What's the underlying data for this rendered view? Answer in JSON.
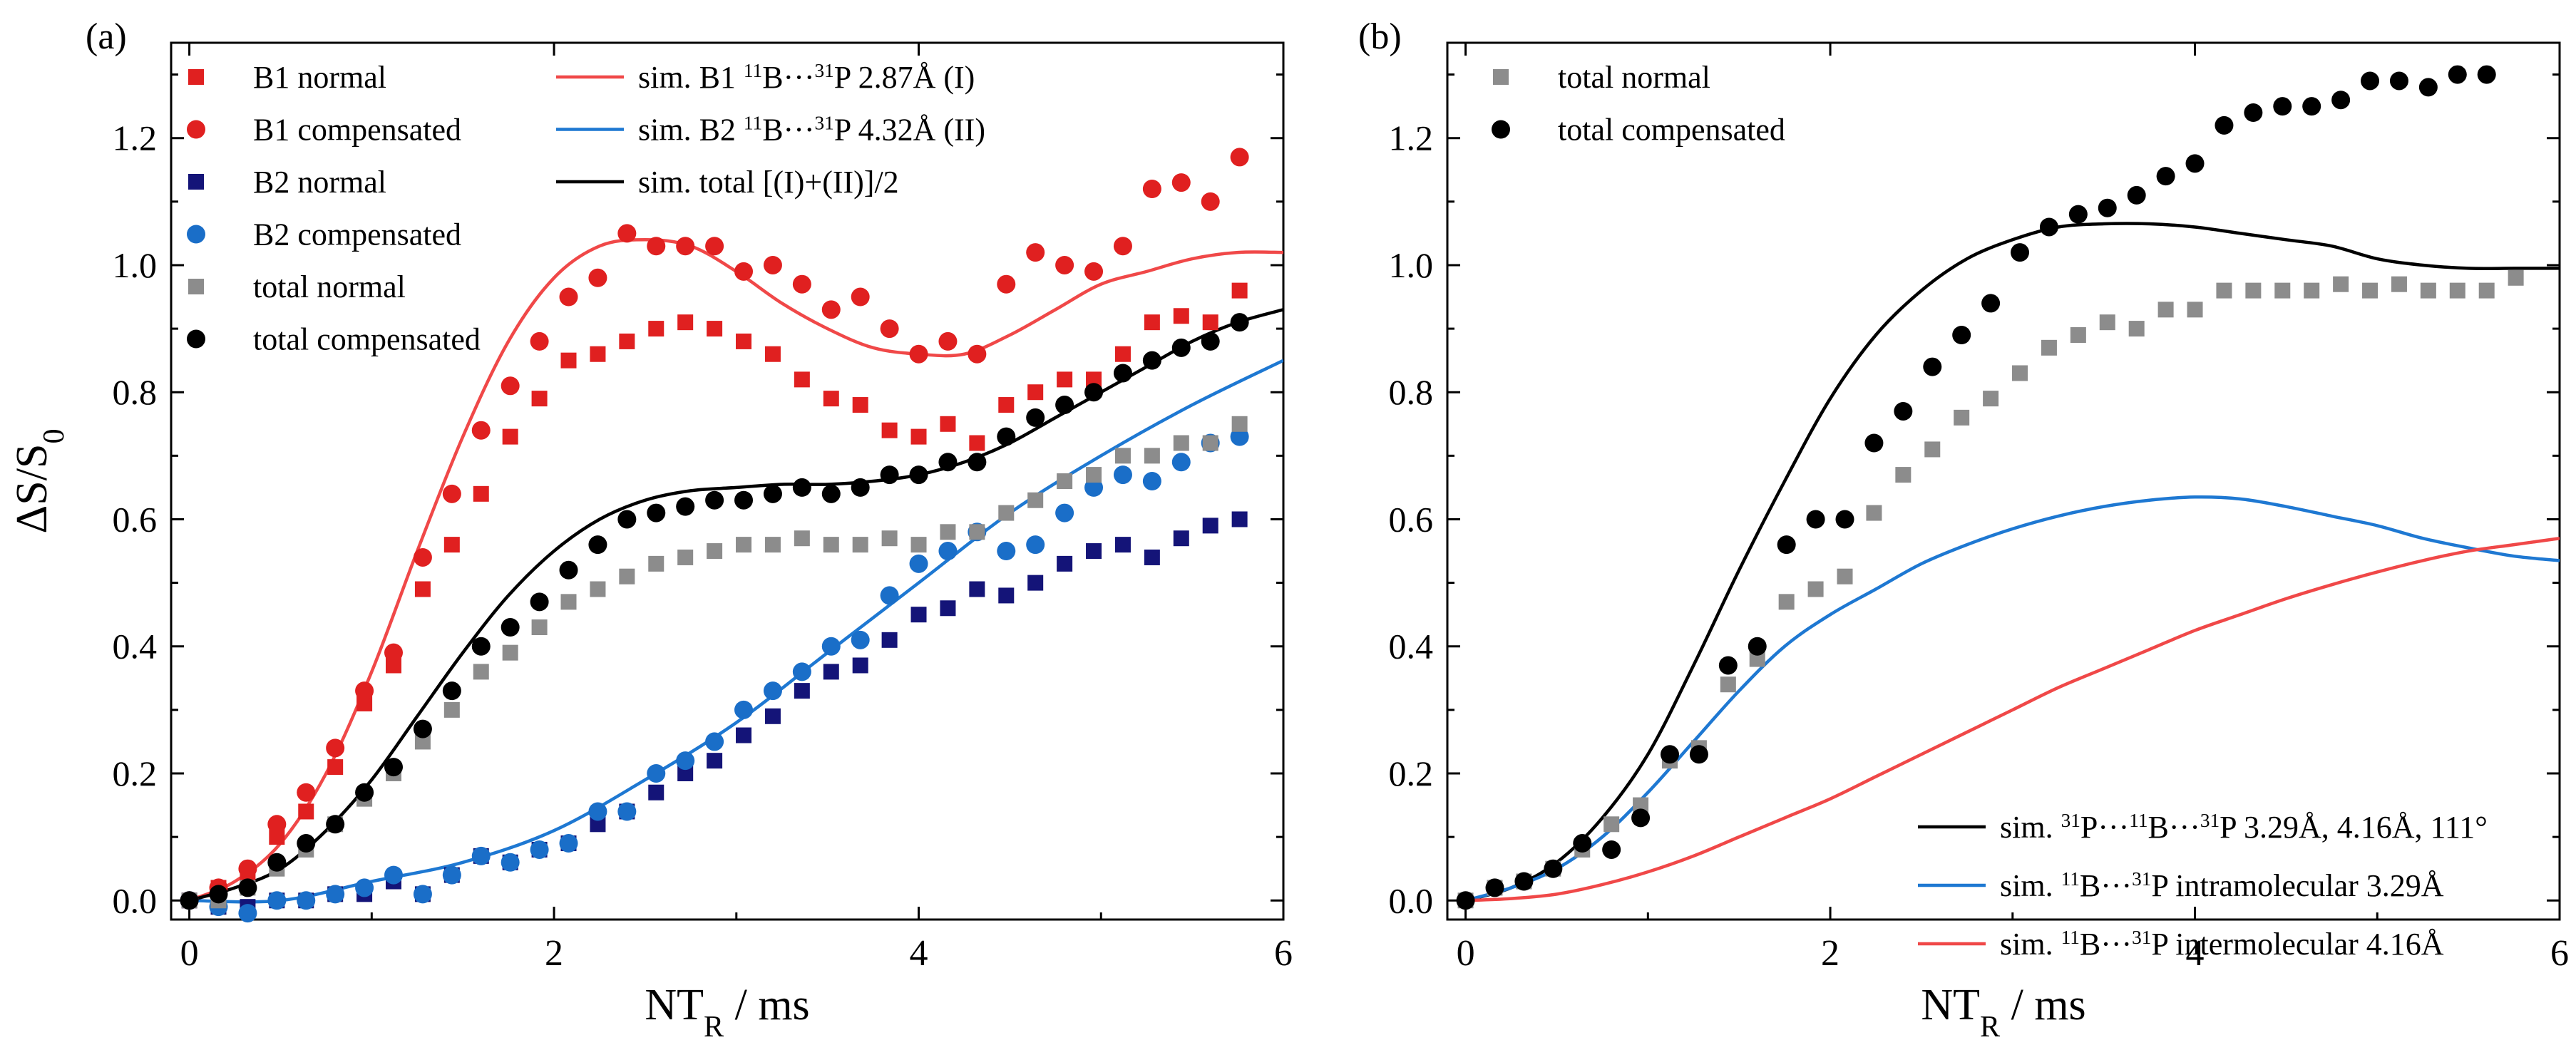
{
  "figure": {
    "panel_labels": [
      "(a)",
      "(b)"
    ]
  },
  "chart_data": [
    {
      "id": "a",
      "type": "scatter",
      "xlabel": "NT",
      "xlabel_sub": "R",
      "xlabel_unit": " / ms",
      "ylabel": "ΔS/S",
      "ylabel_sub": "0",
      "xlim": [
        -0.1,
        6
      ],
      "ylim": [
        -0.03,
        1.35
      ],
      "xticks": [
        0,
        2,
        4,
        6
      ],
      "yticks": [
        0.0,
        0.2,
        0.4,
        0.6,
        0.8,
        1.0,
        1.2
      ],
      "ytick_labels": [
        "0.0",
        "0.2",
        "0.4",
        "0.6",
        "0.8",
        "1.0",
        "1.2"
      ],
      "x": [
        0,
        0.16,
        0.32,
        0.48,
        0.64,
        0.8,
        0.96,
        1.12,
        1.28,
        1.44,
        1.6,
        1.76,
        1.92,
        2.08,
        2.24,
        2.4,
        2.56,
        2.72,
        2.88,
        3.04,
        3.2,
        3.36,
        3.52,
        3.68,
        3.84,
        4.0,
        4.16,
        4.32,
        4.48,
        4.64,
        4.8,
        4.96,
        5.12,
        5.28,
        5.44,
        5.6,
        5.76
      ],
      "series": [
        {
          "name": "B1 normal",
          "marker": "square",
          "color": "#e02020",
          "values": [
            0.0,
            0.02,
            0.03,
            0.1,
            0.14,
            0.21,
            0.31,
            0.37,
            0.49,
            0.56,
            0.64,
            0.73,
            0.79,
            0.85,
            0.86,
            0.88,
            0.9,
            0.91,
            0.9,
            0.88,
            0.86,
            0.82,
            0.79,
            0.78,
            0.74,
            0.73,
            0.75,
            0.72,
            0.78,
            0.8,
            0.82,
            0.82,
            0.86,
            0.91,
            0.92,
            0.91,
            0.96
          ]
        },
        {
          "name": "B1 compensated",
          "marker": "circle",
          "color": "#e02020",
          "values": [
            0.0,
            0.02,
            0.05,
            0.12,
            0.17,
            0.24,
            0.33,
            0.39,
            0.54,
            0.64,
            0.74,
            0.81,
            0.88,
            0.95,
            0.98,
            1.05,
            1.03,
            1.03,
            1.03,
            0.99,
            1.0,
            0.97,
            0.93,
            0.95,
            0.9,
            0.86,
            0.88,
            0.86,
            0.97,
            1.02,
            1.0,
            0.99,
            1.03,
            1.12,
            1.13,
            1.1,
            1.17
          ]
        },
        {
          "name": "B2 normal",
          "marker": "square",
          "color": "#141478",
          "values": [
            0.0,
            -0.01,
            -0.01,
            0.0,
            0.0,
            0.01,
            0.01,
            0.03,
            0.01,
            0.04,
            0.07,
            0.06,
            0.08,
            0.09,
            0.12,
            0.14,
            0.17,
            0.2,
            0.22,
            0.26,
            0.29,
            0.33,
            0.36,
            0.37,
            0.41,
            0.45,
            0.46,
            0.49,
            0.48,
            0.5,
            0.53,
            0.55,
            0.56,
            0.54,
            0.57,
            0.59,
            0.6
          ]
        },
        {
          "name": "B2 compensated",
          "marker": "circle",
          "color": "#1a6ec8",
          "values": [
            0.0,
            -0.01,
            -0.02,
            0.0,
            0.0,
            0.01,
            0.02,
            0.04,
            0.01,
            0.04,
            0.07,
            0.06,
            0.08,
            0.09,
            0.14,
            0.14,
            0.2,
            0.22,
            0.25,
            0.3,
            0.33,
            0.36,
            0.4,
            0.41,
            0.48,
            0.53,
            0.55,
            0.58,
            0.55,
            0.56,
            0.61,
            0.65,
            0.67,
            0.66,
            0.69,
            0.72,
            0.73
          ]
        },
        {
          "name": "total normal",
          "marker": "square",
          "color": "#8c8c8c",
          "values": [
            0.0,
            0.0,
            0.02,
            0.05,
            0.08,
            0.12,
            0.16,
            0.2,
            0.25,
            0.3,
            0.36,
            0.39,
            0.43,
            0.47,
            0.49,
            0.51,
            0.53,
            0.54,
            0.55,
            0.56,
            0.56,
            0.57,
            0.56,
            0.56,
            0.57,
            0.56,
            0.58,
            0.58,
            0.61,
            0.63,
            0.66,
            0.67,
            0.7,
            0.7,
            0.72,
            0.72,
            0.75
          ]
        },
        {
          "name": "total compensated",
          "marker": "circle",
          "color": "#000000",
          "values": [
            0.0,
            0.01,
            0.02,
            0.06,
            0.09,
            0.12,
            0.17,
            0.21,
            0.27,
            0.33,
            0.4,
            0.43,
            0.47,
            0.52,
            0.56,
            0.6,
            0.61,
            0.62,
            0.63,
            0.63,
            0.64,
            0.65,
            0.64,
            0.65,
            0.67,
            0.67,
            0.69,
            0.69,
            0.73,
            0.76,
            0.78,
            0.8,
            0.83,
            0.85,
            0.87,
            0.88,
            0.91
          ]
        }
      ],
      "lines": [
        {
          "name_prefix": "sim. B1 ",
          "sup1": "11",
          "mid": "B···",
          "sup2": "31",
          "name_suffix": "P 2.87Å (I)",
          "color": "#f04848",
          "x": [
            0,
            0.25,
            0.5,
            0.75,
            1.0,
            1.25,
            1.5,
            1.75,
            2.0,
            2.25,
            2.5,
            2.75,
            3.0,
            3.25,
            3.5,
            3.75,
            4.0,
            4.25,
            4.5,
            4.75,
            5.0,
            5.25,
            5.5,
            5.75,
            6.0
          ],
          "y": [
            0.0,
            0.03,
            0.09,
            0.2,
            0.36,
            0.55,
            0.73,
            0.88,
            0.98,
            1.03,
            1.04,
            1.03,
            0.99,
            0.94,
            0.9,
            0.87,
            0.86,
            0.86,
            0.89,
            0.93,
            0.97,
            0.99,
            1.01,
            1.02,
            1.02
          ]
        },
        {
          "name_prefix": "sim. B2 ",
          "sup1": "11",
          "mid": "B···",
          "sup2": "31",
          "name_suffix": "P 4.32Å (II)",
          "color": "#1e78d2",
          "x": [
            0,
            0.5,
            1.0,
            1.5,
            2.0,
            2.5,
            3.0,
            3.5,
            4.0,
            4.5,
            5.0,
            5.5,
            6.0
          ],
          "y": [
            0.0,
            0.0,
            0.03,
            0.06,
            0.11,
            0.19,
            0.28,
            0.39,
            0.5,
            0.61,
            0.7,
            0.78,
            0.85
          ]
        },
        {
          "name_prefix": "sim. total [(I)+(II)]/2",
          "sup1": "",
          "mid": "",
          "sup2": "",
          "name_suffix": "",
          "color": "#000000",
          "x": [
            0,
            0.25,
            0.5,
            0.75,
            1.0,
            1.25,
            1.5,
            1.75,
            2.0,
            2.25,
            2.5,
            2.75,
            3.0,
            3.25,
            3.5,
            3.75,
            4.0,
            4.25,
            4.5,
            4.75,
            5.0,
            5.25,
            5.5,
            5.75,
            6.0
          ],
          "y": [
            0.0,
            0.02,
            0.05,
            0.11,
            0.19,
            0.29,
            0.39,
            0.48,
            0.55,
            0.6,
            0.63,
            0.645,
            0.65,
            0.655,
            0.655,
            0.66,
            0.67,
            0.69,
            0.72,
            0.76,
            0.8,
            0.84,
            0.88,
            0.91,
            0.93
          ]
        }
      ]
    },
    {
      "id": "b",
      "type": "scatter",
      "xlabel": "NT",
      "xlabel_sub": "R",
      "xlabel_unit": " / ms",
      "xlim": [
        -0.1,
        6
      ],
      "ylim": [
        -0.03,
        1.35
      ],
      "xticks": [
        0,
        2,
        4,
        6
      ],
      "yticks": [
        0.0,
        0.2,
        0.4,
        0.6,
        0.8,
        1.0,
        1.2
      ],
      "ytick_labels": [
        "0.0",
        "0.2",
        "0.4",
        "0.6",
        "0.8",
        "1.0",
        "1.2"
      ],
      "x": [
        0,
        0.16,
        0.32,
        0.48,
        0.64,
        0.8,
        0.96,
        1.12,
        1.28,
        1.44,
        1.6,
        1.76,
        1.92,
        2.08,
        2.24,
        2.4,
        2.56,
        2.72,
        2.88,
        3.04,
        3.2,
        3.36,
        3.52,
        3.68,
        3.84,
        4.0,
        4.16,
        4.32,
        4.48,
        4.64,
        4.8,
        4.96,
        5.12,
        5.28,
        5.44,
        5.6,
        5.76
      ],
      "series": [
        {
          "name": "total normal",
          "marker": "square",
          "color": "#8c8c8c",
          "values": [
            0.0,
            0.02,
            0.03,
            0.05,
            0.08,
            0.12,
            0.15,
            0.22,
            0.24,
            0.34,
            0.38,
            0.47,
            0.49,
            0.51,
            0.61,
            0.67,
            0.71,
            0.76,
            0.79,
            0.83,
            0.87,
            0.89,
            0.91,
            0.9,
            0.93,
            0.93,
            0.96,
            0.96,
            0.96,
            0.96,
            0.97,
            0.96,
            0.97,
            0.96,
            0.96,
            0.96,
            0.98
          ]
        },
        {
          "name": "total compensated",
          "marker": "circle",
          "color": "#000000",
          "values": [
            0.0,
            0.02,
            0.03,
            0.05,
            0.09,
            0.08,
            0.13,
            0.23,
            0.23,
            0.37,
            0.4,
            0.56,
            0.6,
            0.6,
            0.72,
            0.77,
            0.84,
            0.89,
            0.94,
            1.02,
            1.06,
            1.08,
            1.09,
            1.11,
            1.14,
            1.16,
            1.22,
            1.24,
            1.25,
            1.25,
            1.26,
            1.29,
            1.29,
            1.28,
            1.3,
            1.3,
            null
          ]
        }
      ],
      "lines": [
        {
          "name_prefix": "sim. ",
          "sup1": "31",
          "mid": "P···",
          "sup2": "11",
          "mid2": "B···",
          "sup3": "31",
          "name_suffix": "P 3.29Å, 4.16Å, 111°",
          "color": "#000000",
          "x": [
            0,
            0.25,
            0.5,
            0.75,
            1.0,
            1.25,
            1.5,
            1.75,
            2.0,
            2.25,
            2.5,
            2.75,
            3.0,
            3.25,
            3.5,
            3.75,
            4.0,
            4.25,
            4.5,
            4.75,
            5.0,
            5.25,
            5.5,
            5.75,
            6.0
          ],
          "y": [
            0.0,
            0.02,
            0.06,
            0.13,
            0.23,
            0.37,
            0.52,
            0.66,
            0.79,
            0.89,
            0.96,
            1.01,
            1.04,
            1.06,
            1.065,
            1.065,
            1.06,
            1.05,
            1.04,
            1.03,
            1.01,
            1.0,
            0.995,
            0.995,
            0.995
          ]
        },
        {
          "name_prefix": "sim. ",
          "sup1": "11",
          "mid": "B···",
          "sup2": "31",
          "name_suffix": "P intramolecular 3.29Å",
          "color": "#1e78d2",
          "x": [
            0,
            0.25,
            0.5,
            0.75,
            1.0,
            1.25,
            1.5,
            1.75,
            2.0,
            2.25,
            2.5,
            2.75,
            3.0,
            3.25,
            3.5,
            3.75,
            4.0,
            4.25,
            4.5,
            4.75,
            5.0,
            5.25,
            5.5,
            5.75,
            6.0
          ],
          "y": [
            0.0,
            0.02,
            0.05,
            0.1,
            0.17,
            0.25,
            0.33,
            0.4,
            0.45,
            0.49,
            0.53,
            0.56,
            0.585,
            0.605,
            0.62,
            0.63,
            0.635,
            0.632,
            0.62,
            0.605,
            0.59,
            0.57,
            0.555,
            0.542,
            0.535
          ]
        },
        {
          "name_prefix": "sim. ",
          "sup1": "11",
          "mid": "B···",
          "sup2": "31",
          "name_suffix": "P intermolecular 4.16Å",
          "color": "#f04848",
          "x": [
            0,
            0.25,
            0.5,
            0.75,
            1.0,
            1.25,
            1.5,
            1.75,
            2.0,
            2.25,
            2.5,
            2.75,
            3.0,
            3.25,
            3.5,
            3.75,
            4.0,
            4.25,
            4.5,
            4.75,
            5.0,
            5.25,
            5.5,
            5.75,
            6.0
          ],
          "y": [
            0.0,
            0.003,
            0.01,
            0.025,
            0.045,
            0.07,
            0.1,
            0.13,
            0.16,
            0.195,
            0.23,
            0.265,
            0.3,
            0.335,
            0.365,
            0.395,
            0.425,
            0.45,
            0.475,
            0.497,
            0.517,
            0.535,
            0.55,
            0.56,
            0.57
          ]
        }
      ]
    }
  ]
}
